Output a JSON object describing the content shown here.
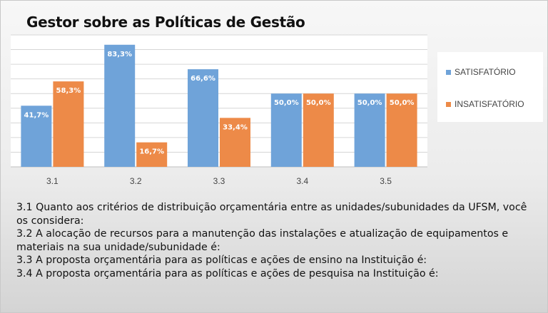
{
  "title": "Gestor sobre as Políticas de Gestão",
  "colors": {
    "satisfatorio": "#6fa3d9",
    "insatisfatorio": "#ed8a48",
    "grid": "#d6d6d6",
    "plot_bg": "#ffffff"
  },
  "chart_data": {
    "type": "bar",
    "categories": [
      "3.1",
      "3.2",
      "3.3",
      "3.4",
      "3.5"
    ],
    "series": [
      {
        "name": "SATISFATÓRIO",
        "values": [
          41.7,
          83.3,
          66.6,
          50.0,
          50.0
        ],
        "labels": [
          "41,7%",
          "83,3%",
          "66,6%",
          "50,0%",
          "50,0%"
        ]
      },
      {
        "name": "INSATISFATÓRIO",
        "values": [
          58.3,
          16.7,
          33.4,
          50.0,
          50.0
        ],
        "labels": [
          "58,3%",
          "16,7%",
          "33,4%",
          "50,0%",
          "50,0%"
        ]
      }
    ],
    "ylim": [
      0,
      90
    ],
    "grid": true,
    "legend_position": "right"
  },
  "notes": [
    "3.1 Quanto aos critérios de distribuição orçamentária entre as unidades/subunidades da UFSM, você os considera:",
    "3.2 A alocação de recursos para a manutenção das instalações e atualização de equipamentos e materiais na sua unidade/subunidade é:",
    "3.3 A proposta orçamentária para as políticas e ações de ensino na Instituição é:",
    "3.4 A proposta orçamentária para as políticas e ações de pesquisa na Instituição é:"
  ]
}
